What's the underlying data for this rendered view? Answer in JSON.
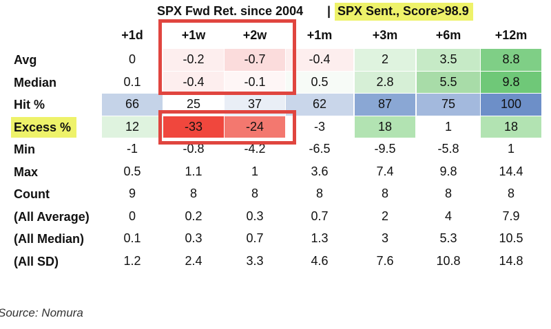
{
  "title": {
    "left": "SPX Fwd Ret. since 2004",
    "separator": "|",
    "right": "SPX Sent., Score>98.9"
  },
  "chart_data": {
    "type": "table",
    "columns": [
      "+1d",
      "+1w",
      "+2w",
      "+1m",
      "+3m",
      "+6m",
      "+12m"
    ],
    "rows": [
      {
        "label": "Avg",
        "values": [
          "0",
          "-0.2",
          "-0.7",
          "-0.4",
          "2",
          "3.5",
          "8.8"
        ]
      },
      {
        "label": "Median",
        "values": [
          "0.1",
          "-0.4",
          "-0.1",
          "0.5",
          "2.8",
          "5.5",
          "9.8"
        ]
      },
      {
        "label": "Hit %",
        "values": [
          "66",
          "25",
          "37",
          "62",
          "87",
          "75",
          "100"
        ]
      },
      {
        "label": "Excess %",
        "values": [
          "12",
          "-33",
          "-24",
          "-3",
          "18",
          "1",
          "18"
        ],
        "highlight": true
      },
      {
        "label": "Min",
        "values": [
          "-1",
          "-0.8",
          "-4.2",
          "-6.5",
          "-9.5",
          "-5.8",
          "1"
        ]
      },
      {
        "label": "Max",
        "values": [
          "0.5",
          "1.1",
          "1",
          "3.6",
          "7.4",
          "9.8",
          "14.4"
        ]
      },
      {
        "label": "Count",
        "values": [
          "9",
          "8",
          "8",
          "8",
          "8",
          "8",
          "8"
        ]
      },
      {
        "label": "(All Average)",
        "values": [
          "0",
          "0.2",
          "0.3",
          "0.7",
          "2",
          "4",
          "7.9"
        ]
      },
      {
        "label": "(All Median)",
        "values": [
          "0.1",
          "0.3",
          "0.7",
          "1.3",
          "3",
          "5.3",
          "10.5"
        ]
      },
      {
        "label": "(All SD)",
        "values": [
          "1.2",
          "2.4",
          "3.3",
          "4.6",
          "7.6",
          "10.8",
          "14.8"
        ]
      }
    ],
    "cell_colors": [
      [
        "#ffffff",
        "#fdeeee",
        "#fbdcdc",
        "#fdeeee",
        "#dff3df",
        "#c6eac6",
        "#7fcf86"
      ],
      [
        "#ffffff",
        "#fdeeee",
        "#fef6f6",
        "#f7fbf7",
        "#d6efd6",
        "#a8dca8",
        "#6fc878"
      ],
      [
        "#c5d3e8",
        "#ffffff",
        "#e9eef6",
        "#c9d6ea",
        "#8aa7d4",
        "#a3b9dd",
        "#6d8fc8"
      ],
      [
        "#dff3df",
        "#f0473d",
        "#f3786f",
        "#ffffff",
        "#b2e3b2",
        "#ffffff",
        "#b2e3b2"
      ],
      [
        "#ffffff",
        "#ffffff",
        "#ffffff",
        "#ffffff",
        "#ffffff",
        "#ffffff",
        "#ffffff"
      ],
      [
        "#ffffff",
        "#ffffff",
        "#ffffff",
        "#ffffff",
        "#ffffff",
        "#ffffff",
        "#ffffff"
      ],
      [
        "#ffffff",
        "#ffffff",
        "#ffffff",
        "#ffffff",
        "#ffffff",
        "#ffffff",
        "#ffffff"
      ],
      [
        "#ffffff",
        "#ffffff",
        "#ffffff",
        "#ffffff",
        "#ffffff",
        "#ffffff",
        "#ffffff"
      ],
      [
        "#ffffff",
        "#ffffff",
        "#ffffff",
        "#ffffff",
        "#ffffff",
        "#ffffff",
        "#ffffff"
      ],
      [
        "#ffffff",
        "#ffffff",
        "#ffffff",
        "#ffffff",
        "#ffffff",
        "#ffffff",
        "#ffffff"
      ]
    ],
    "highlight_color": "#eef26a",
    "annotation_color": "#e0453f"
  },
  "source": "Source: Nomura"
}
